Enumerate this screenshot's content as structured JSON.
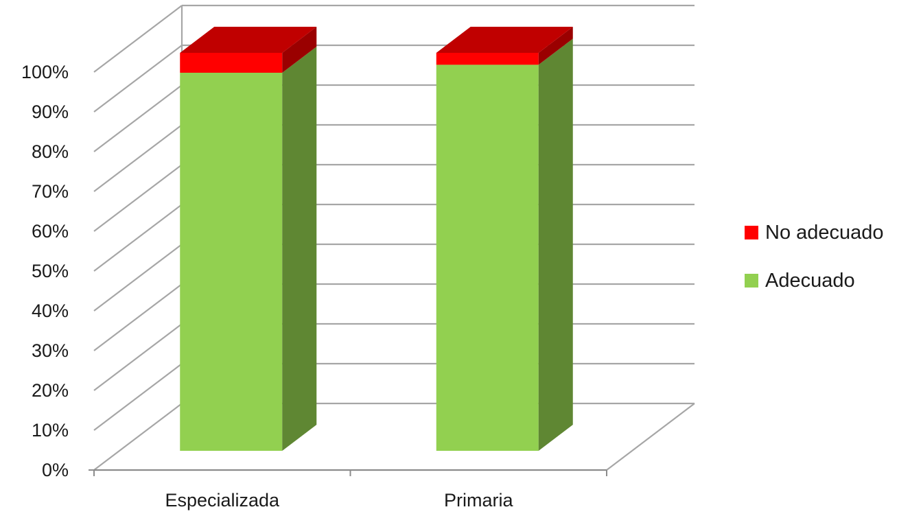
{
  "chart_data": {
    "type": "bar",
    "stacked": true,
    "three_d": true,
    "categories": [
      "Especializada",
      "Primaria"
    ],
    "series": [
      {
        "name": "Adecuado",
        "values": [
          95,
          97
        ],
        "color": "#92d050",
        "side_color": "#5f8733"
      },
      {
        "name": "No adecuado",
        "values": [
          5,
          3
        ],
        "color": "#ff0000",
        "top_color": "#c00000",
        "side_color": "#9a0000"
      }
    ],
    "y_ticks": [
      "0%",
      "10%",
      "20%",
      "30%",
      "40%",
      "50%",
      "60%",
      "70%",
      "80%",
      "90%",
      "100%"
    ],
    "ylim": [
      0,
      100
    ],
    "grid": true,
    "legend_position": "right",
    "grid_color": "#a6a6a6",
    "axis_color": "#8c8c8c"
  }
}
